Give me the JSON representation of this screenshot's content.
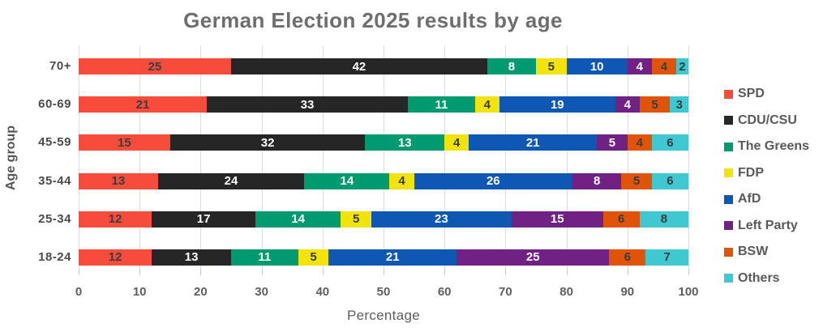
{
  "title": "German Election 2025 results by age",
  "palette": {
    "label_dark": "#3c3c3c",
    "label_light": "#ffffff",
    "grid": "#dcdcdc",
    "tick": "#c8c8c8",
    "title_text": "#6e6e6e",
    "axis_text": "#5e5e5e"
  },
  "chart_data": {
    "type": "bar",
    "stacked": true,
    "orientation": "horizontal",
    "title": "German Election 2025 results by age",
    "xlabel": "Percentage",
    "ylabel": "Age group",
    "categories": [
      "70+",
      "60-69",
      "45-59",
      "35-44",
      "25-34",
      "18-24"
    ],
    "series": [
      {
        "name": "SPD",
        "color": "#f74b3c",
        "label_style": "dark",
        "values": [
          25,
          21,
          15,
          13,
          12,
          12
        ]
      },
      {
        "name": "CDU/CSU",
        "color": "#262626",
        "label_style": "light",
        "values": [
          42,
          33,
          32,
          24,
          17,
          13
        ]
      },
      {
        "name": "The Greens",
        "color": "#009a70",
        "label_style": "light",
        "values": [
          8,
          11,
          13,
          14,
          14,
          11
        ]
      },
      {
        "name": "FDP",
        "color": "#f2e30c",
        "label_style": "dark",
        "values": [
          5,
          4,
          4,
          4,
          5,
          5
        ]
      },
      {
        "name": "AfD",
        "color": "#0e58b4",
        "label_style": "light",
        "values": [
          10,
          19,
          21,
          26,
          23,
          21
        ]
      },
      {
        "name": "Left Party",
        "color": "#6f2184",
        "label_style": "light",
        "values": [
          4,
          4,
          5,
          8,
          15,
          25
        ]
      },
      {
        "name": "BSW",
        "color": "#e0540a",
        "label_style": "dark",
        "values": [
          4,
          5,
          4,
          5,
          6,
          6
        ]
      },
      {
        "name": "Others",
        "color": "#3fc8d2",
        "label_style": "dark",
        "values": [
          2,
          3,
          6,
          6,
          8,
          7
        ]
      }
    ],
    "x_ticks": [
      0,
      10,
      20,
      30,
      40,
      50,
      60,
      70,
      80,
      90,
      100
    ],
    "xlim": [
      0,
      100
    ],
    "grid": true,
    "legend_position": "right"
  }
}
